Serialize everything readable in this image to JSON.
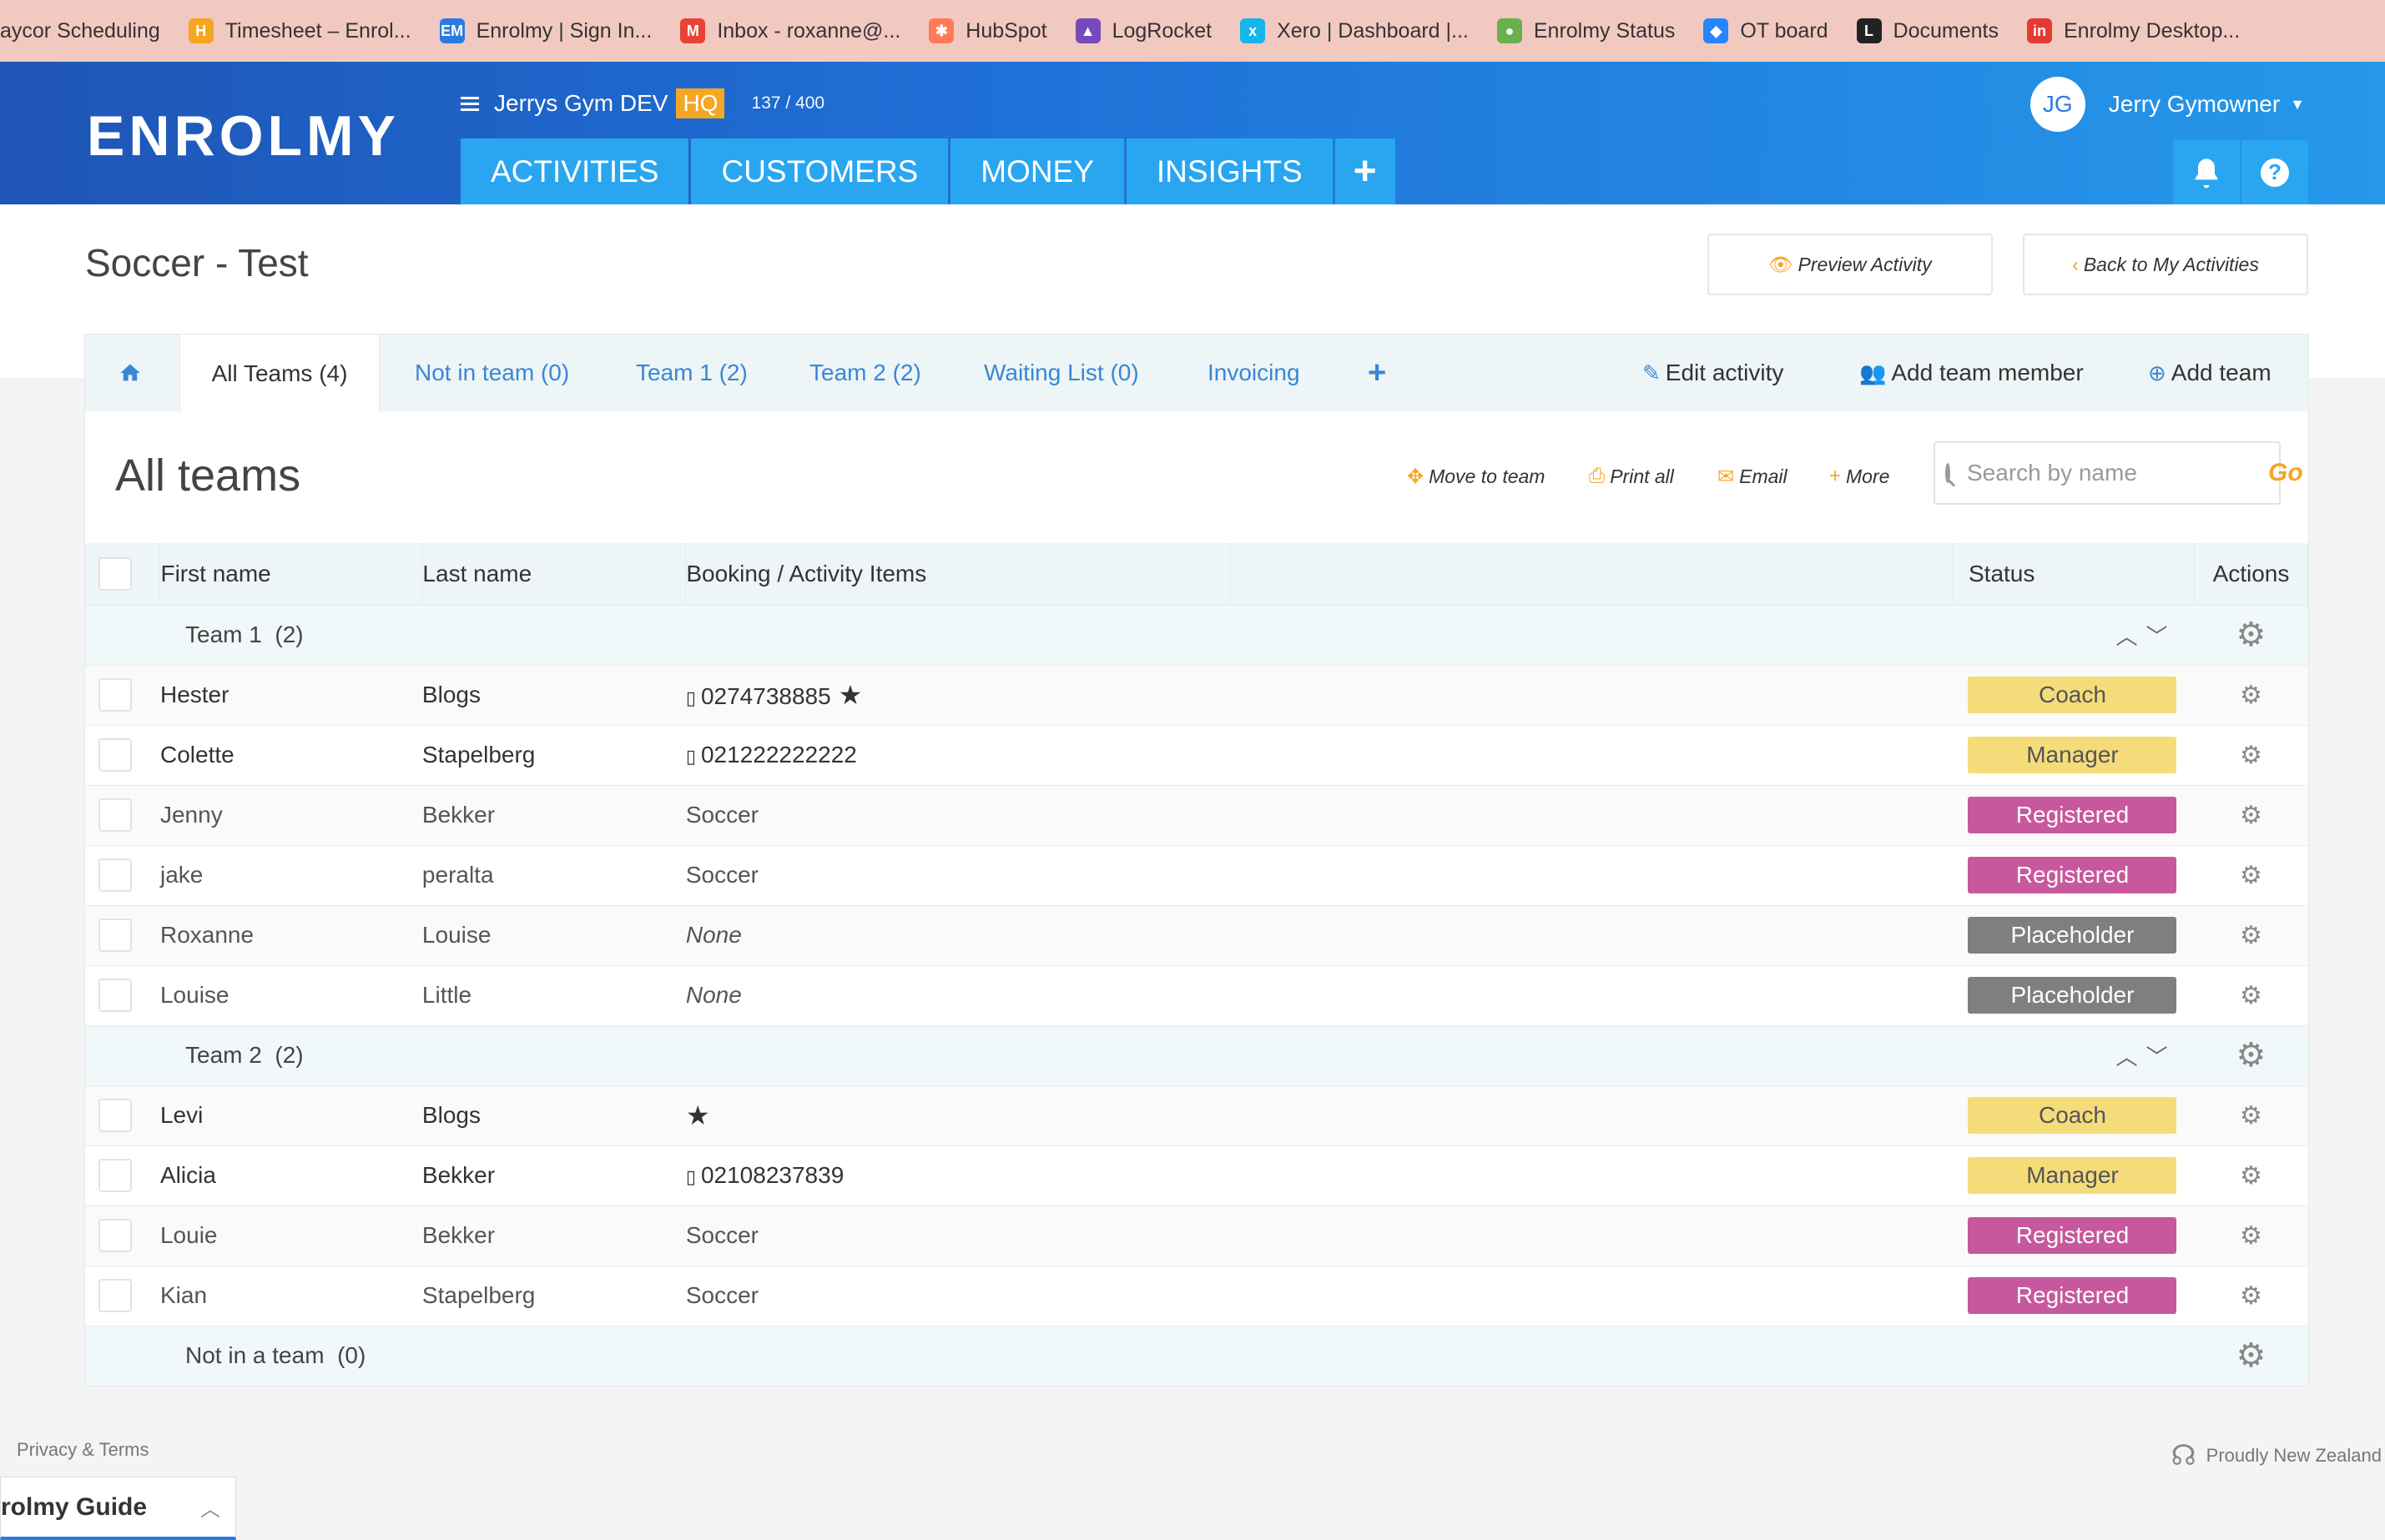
{
  "bookmarks": [
    {
      "label": "aycor Scheduling",
      "icon": "none",
      "color": ""
    },
    {
      "label": "Timesheet – Enrol...",
      "icon": "timesheet-icon",
      "color": "#f5a623",
      "glyph": "H"
    },
    {
      "label": "Enrolmy | Sign In...",
      "icon": "enrolmy-icon",
      "color": "#2a7be0",
      "glyph": "EM"
    },
    {
      "label": "Inbox - roxanne@...",
      "icon": "gmail-icon",
      "color": "#ea4335",
      "glyph": "M"
    },
    {
      "label": "HubSpot",
      "icon": "hubspot-icon",
      "color": "#ff7a59",
      "glyph": "✱"
    },
    {
      "label": "LogRocket",
      "icon": "logrocket-icon",
      "color": "#764abc",
      "glyph": "▲"
    },
    {
      "label": "Xero | Dashboard |...",
      "icon": "xero-icon",
      "color": "#13b5ea",
      "glyph": "x"
    },
    {
      "label": "Enrolmy Status",
      "icon": "status-icon",
      "color": "#6ab04c",
      "glyph": "●"
    },
    {
      "label": "OT board",
      "icon": "jira-icon",
      "color": "#2684ff",
      "glyph": "◆"
    },
    {
      "label": "Documents",
      "icon": "documents-icon",
      "color": "#222222",
      "glyph": "L"
    },
    {
      "label": "Enrolmy Desktop...",
      "icon": "enrolmy-desktop-icon",
      "color": "#e53935",
      "glyph": "in"
    }
  ],
  "header": {
    "logo": "ENROLMY",
    "org_name": "Jerrys Gym DEV",
    "org_badge": "HQ",
    "org_count": "137 / 400",
    "nav": [
      "ACTIVITIES",
      "CUSTOMERS",
      "MONEY",
      "INSIGHTS"
    ],
    "nav_add": "+",
    "user_initials": "JG",
    "user_name": "Jerry Gymowner"
  },
  "page": {
    "title": "Soccer - Test",
    "preview_label": "Preview Activity",
    "back_label": "Back to My Activities"
  },
  "tabs": {
    "all_teams": "All Teams (4)",
    "not_in_team": "Not in team (0)",
    "team1": "Team 1 (2)",
    "team2": "Team 2 (2)",
    "waiting": "Waiting List (0)",
    "invoicing": "Invoicing",
    "edit_activity": "Edit activity",
    "add_member": "Add team member",
    "add_team": "Add team"
  },
  "section": {
    "title": "All teams",
    "move": "Move to team",
    "print": "Print all",
    "email": "Email",
    "more": "More",
    "search_placeholder": "Search by name",
    "go": "Go"
  },
  "table": {
    "headers": {
      "first": "First name",
      "last": "Last name",
      "booking": "Booking / Activity Items",
      "status": "Status",
      "actions": "Actions"
    },
    "teams": [
      {
        "name": "Team 1",
        "count": "(2)",
        "members": [
          {
            "first": "Hester",
            "last": "Blogs",
            "booking": "0274738885",
            "phone": true,
            "star": true,
            "status": "Coach"
          },
          {
            "first": "Colette",
            "last": "Stapelberg",
            "booking": "021222222222",
            "phone": true,
            "star": false,
            "status": "Manager"
          },
          {
            "first": "Jenny",
            "last": "Bekker",
            "booking": "Soccer",
            "phone": false,
            "star": false,
            "status": "Registered"
          },
          {
            "first": "jake",
            "last": "peralta",
            "booking": "Soccer",
            "phone": false,
            "star": false,
            "status": "Registered"
          },
          {
            "first": "Roxanne",
            "last": "Louise",
            "booking": "None",
            "phone": false,
            "star": false,
            "status": "Placeholder"
          },
          {
            "first": "Louise",
            "last": "Little",
            "booking": "None",
            "phone": false,
            "star": false,
            "status": "Placeholder"
          }
        ]
      },
      {
        "name": "Team 2",
        "count": "(2)",
        "members": [
          {
            "first": "Levi",
            "last": "Blogs",
            "booking": "",
            "phone": false,
            "star": true,
            "status": "Coach"
          },
          {
            "first": "Alicia",
            "last": "Bekker",
            "booking": "02108237839",
            "phone": true,
            "star": false,
            "status": "Manager"
          },
          {
            "first": "Louie",
            "last": "Bekker",
            "booking": "Soccer",
            "phone": false,
            "star": false,
            "status": "Registered"
          },
          {
            "first": "Kian",
            "last": "Stapelberg",
            "booking": "Soccer",
            "phone": false,
            "star": false,
            "status": "Registered"
          }
        ]
      },
      {
        "name": "Not in a team",
        "count": "(0)",
        "members": [],
        "no_arrows": true
      }
    ]
  },
  "status_colors": {
    "Coach": {
      "bg": "#f4dc7a",
      "fg": "#555555"
    },
    "Manager": {
      "bg": "#f4dc7a",
      "fg": "#555555"
    },
    "Registered": {
      "bg": "#c8589d",
      "fg": "#ffffff"
    },
    "Placeholder": {
      "bg": "#7f7f7f",
      "fg": "#ffffff"
    }
  },
  "footer": {
    "left": "Privacy & Terms",
    "right": "Proudly New Zealand",
    "guide": "rolmy Guide"
  }
}
